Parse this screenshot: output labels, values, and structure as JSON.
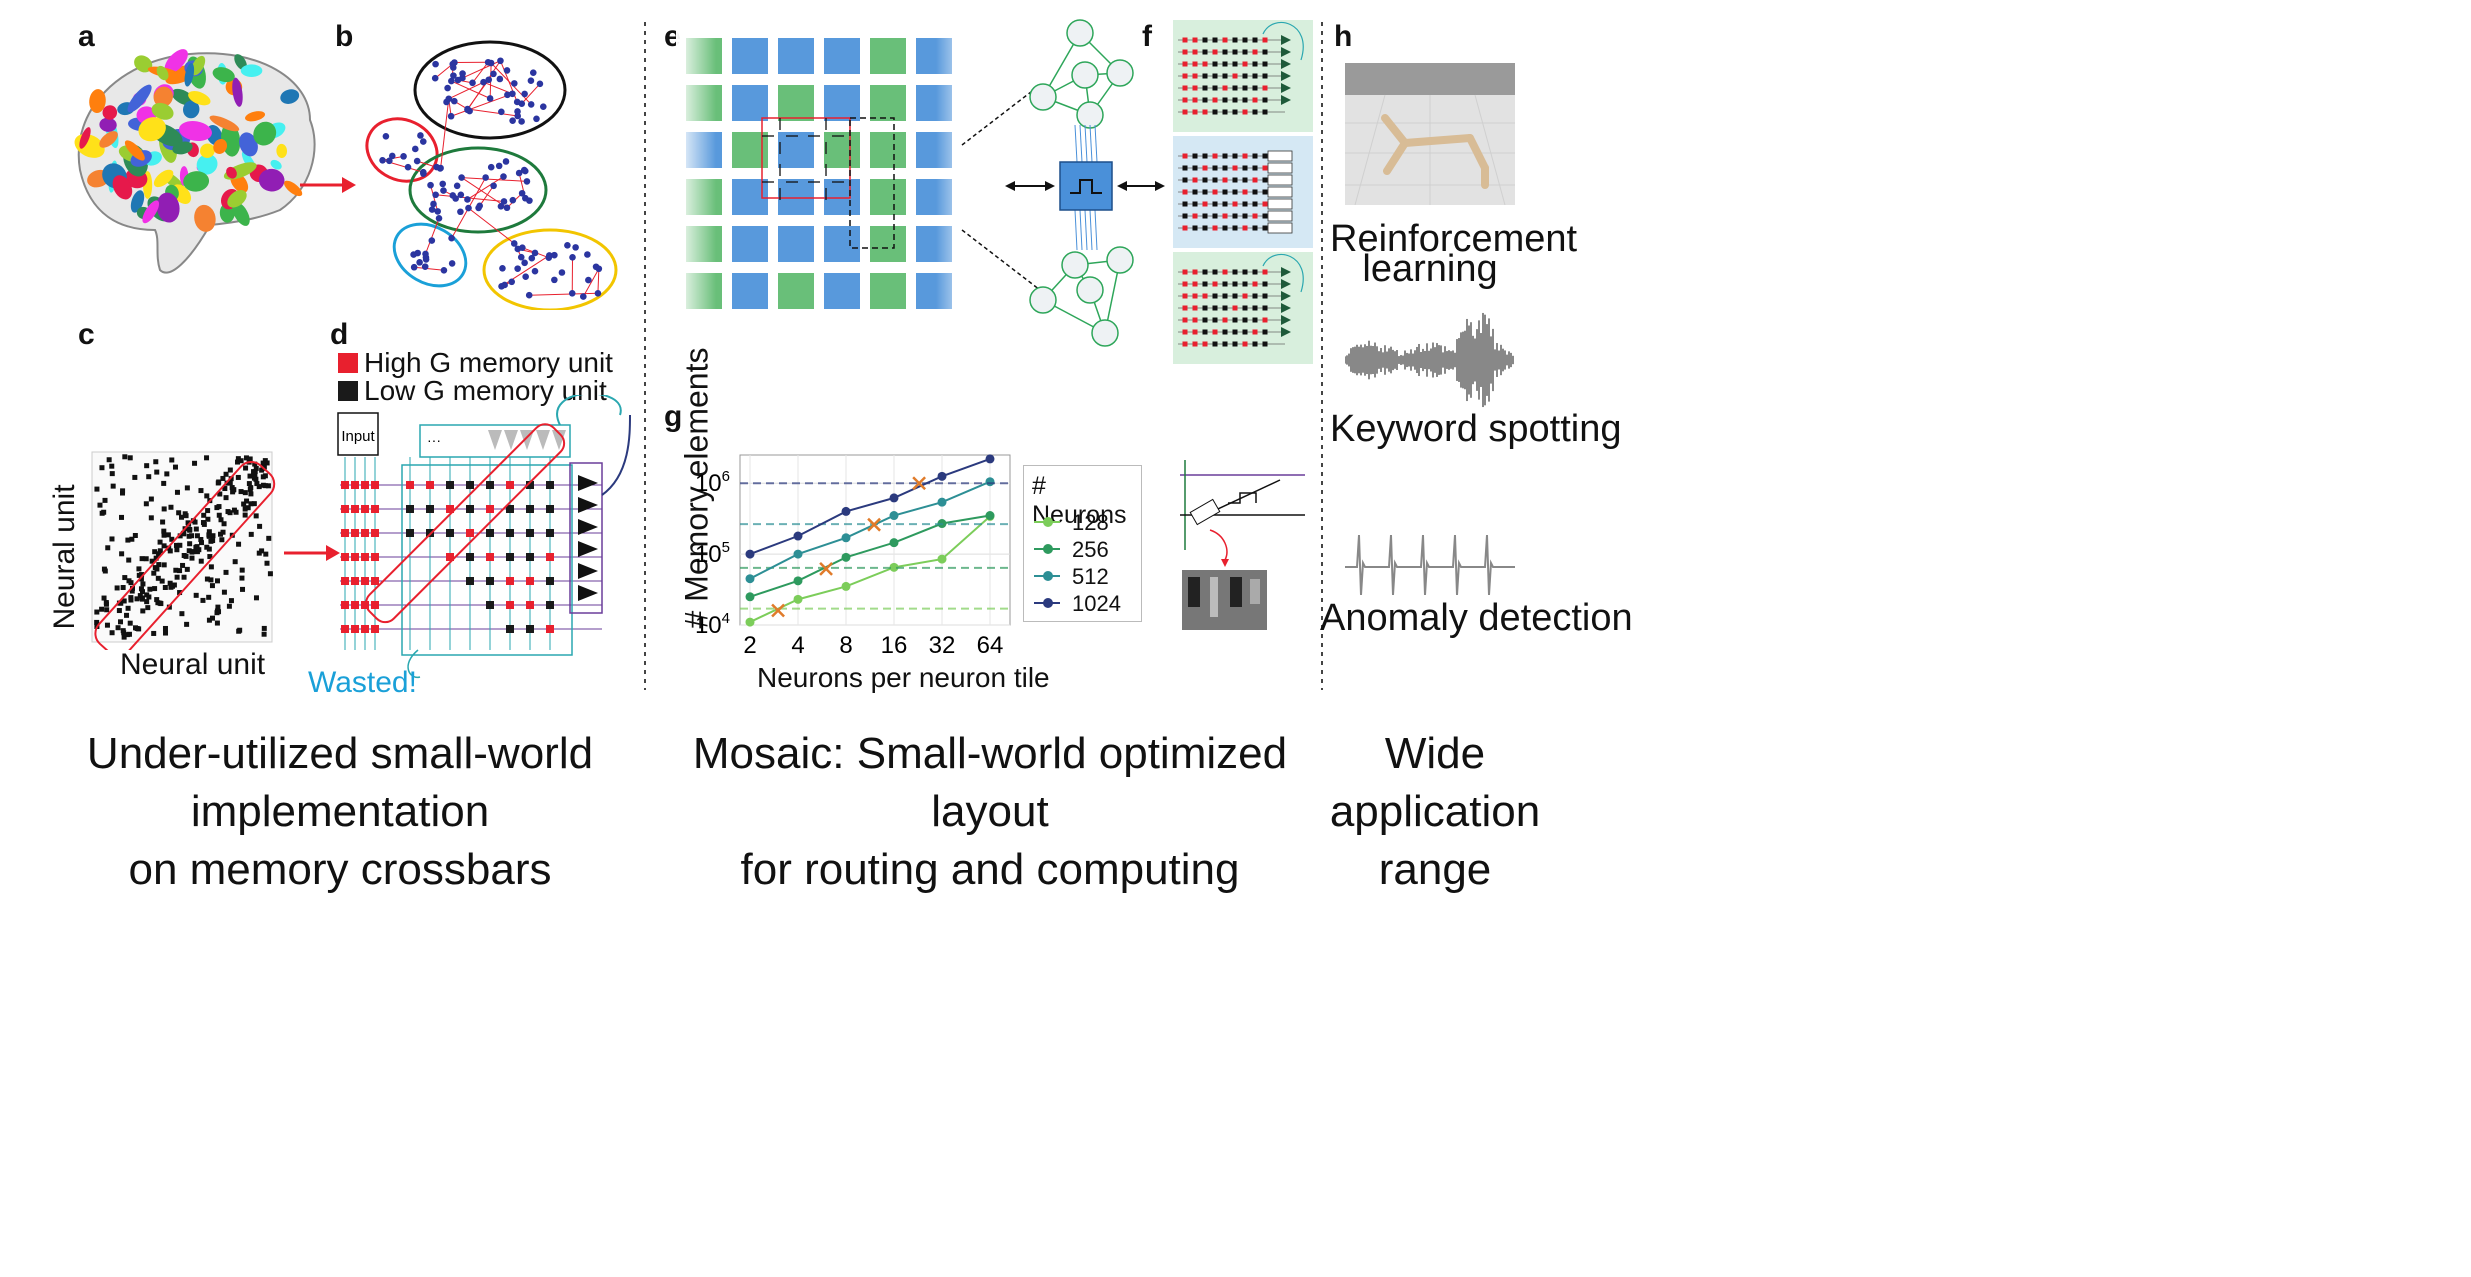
{
  "panels": {
    "a": "a",
    "b": "b",
    "c": "c",
    "d": "d",
    "e": "e",
    "f": "f",
    "g": "g",
    "h": "h"
  },
  "panel_c": {
    "x_label": "Neural unit",
    "y_label": "Neural unit"
  },
  "panel_d": {
    "legend_high": "High G memory unit",
    "legend_low": "Low G memory unit",
    "input_label": "Input",
    "wasted_label": "Wasted!",
    "ellipsis": "···",
    "colors": {
      "high": "#e8202e",
      "low": "#1a1a1a",
      "wire": "#2aa7b0",
      "row": "#6a3d9a"
    }
  },
  "panel_h": {
    "rl_label_1": "Reinforcement",
    "rl_label_2": "learning",
    "kws_label": "Keyword spotting",
    "anomaly_label": "Anomaly detection"
  },
  "captions": {
    "left_1": "Under-utilized small-world implementation",
    "left_2": "on memory crossbars",
    "middle_1": "Mosaic: Small-world optimized layout",
    "middle_2": "for routing and computing",
    "right_1": "Wide",
    "right_2": "application range"
  },
  "colors": {
    "blue_tile": "#4a90d9",
    "green_tile": "#5cba6e",
    "red": "#e8202e",
    "arrow": "#e8202e"
  },
  "chart_data": {
    "type": "line",
    "xlabel": "Neurons per neuron tile",
    "ylabel": "# Memory elements",
    "x": [
      2,
      4,
      8,
      16,
      32,
      64
    ],
    "x_tick_labels": [
      "2",
      "4",
      "8",
      "16",
      "32",
      "64"
    ],
    "x_scale": "log2",
    "y_scale": "log",
    "ylim": [
      10000,
      2500000
    ],
    "y_tick_labels": [
      "10^4",
      "10^5",
      "10^6"
    ],
    "grid": true,
    "legend_title": "# Neurons",
    "legend_placement": "right, outside",
    "series": [
      {
        "name": "128",
        "color": "#7ccd5a",
        "values": [
          11000,
          23000,
          35000,
          65000,
          85000,
          340000
        ],
        "optimum_x": 3,
        "optimum_y": 16000,
        "reference": 17000
      },
      {
        "name": "256",
        "color": "#2e9a5e",
        "values": [
          25000,
          42000,
          90000,
          145000,
          270000,
          350000
        ],
        "optimum_x": 6,
        "optimum_y": 62000,
        "reference": 64000
      },
      {
        "name": "512",
        "color": "#2d8f95",
        "values": [
          45000,
          100000,
          170000,
          350000,
          540000,
          1050000
        ],
        "optimum_x": 12,
        "optimum_y": 260000,
        "reference": 265000
      },
      {
        "name": "1024",
        "color": "#2b3a7e",
        "values": [
          100000,
          180000,
          400000,
          620000,
          1250000,
          2200000
        ],
        "optimum_x": 23,
        "optimum_y": 1000000,
        "reference": 1000000
      }
    ]
  }
}
